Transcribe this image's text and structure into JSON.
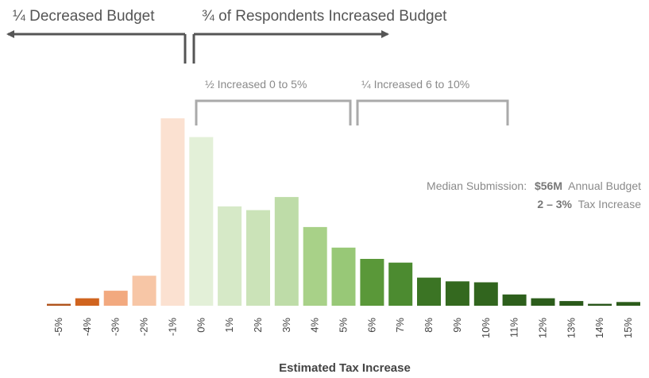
{
  "chart_data": {
    "type": "bar",
    "xlabel": "Estimated Tax Increase",
    "categories": [
      "-5%",
      "-4%",
      "-3%",
      "-2%",
      "-1%",
      "0%",
      "1%",
      "2%",
      "3%",
      "4%",
      "5%",
      "6%",
      "7%",
      "8%",
      "9%",
      "10%",
      "11%",
      "12%",
      "13%",
      "14%",
      "15%"
    ],
    "values": [
      1,
      4,
      8,
      16,
      100,
      90,
      53,
      51,
      58,
      42,
      31,
      25,
      23,
      15,
      13,
      12.5,
      6,
      4,
      2.5,
      1,
      2
    ],
    "ylim": [
      0,
      105
    ],
    "bar_colors": [
      "#b0531b",
      "#d0641f",
      "#f2a97f",
      "#f7c6a6",
      "#fbe1d1",
      "#e3f0d8",
      "#d6e9c7",
      "#cbe3b8",
      "#bedca8",
      "#a8d188",
      "#98c877",
      "#5a9839",
      "#4c8b30",
      "#3b7424",
      "#34691f",
      "#31651e",
      "#2d5f1c",
      "#2c5d1b",
      "#2a591a",
      "#285519",
      "#2c5c1b"
    ],
    "annotations": {
      "decreased": "¼ Decreased Budget",
      "increased": "¾ of Respondents Increased Budget",
      "bracket_1": "½ Increased  0 to 5%",
      "bracket_2": "¼ Increased  6 to 10%",
      "median_label": "Median Submission:",
      "median_value": "$56M",
      "median_suffix": "Annual Budget",
      "median_range": "2 – 3%",
      "median_range_suffix": "Tax Increase"
    },
    "grid": false,
    "legend": "none"
  }
}
